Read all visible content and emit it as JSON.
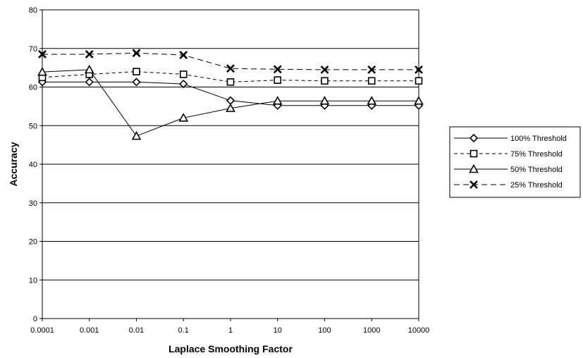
{
  "chart_data": {
    "type": "line",
    "title": "",
    "xlabel": "Laplace Smoothing Factor",
    "ylabel": "Accuracy",
    "categories": [
      "0.0001",
      "0.001",
      "0.01",
      "0.1",
      "1",
      "10",
      "100",
      "1000",
      "10000"
    ],
    "ylim": [
      0,
      80
    ],
    "yticks": [
      0,
      10,
      20,
      30,
      40,
      50,
      60,
      70,
      80
    ],
    "grid": true,
    "legend_position": "right",
    "series": [
      {
        "name": "100% Threshold",
        "marker": "diamond",
        "dash": "solid",
        "values": [
          61.3,
          61.3,
          61.3,
          60.8,
          56.5,
          55.2,
          55.2,
          55.2,
          55.2
        ]
      },
      {
        "name": "75% Threshold",
        "marker": "square",
        "dash": "dashed",
        "values": [
          62.5,
          63.3,
          64.0,
          63.3,
          61.3,
          61.8,
          61.6,
          61.6,
          61.6
        ]
      },
      {
        "name": "50% Threshold",
        "marker": "triangle",
        "dash": "solid",
        "values": [
          63.9,
          64.5,
          47.3,
          52.0,
          54.5,
          56.4,
          56.4,
          56.4,
          56.4
        ]
      },
      {
        "name": "25% Threshold",
        "marker": "x",
        "dash": "long-dashed",
        "values": [
          68.5,
          68.5,
          68.8,
          68.3,
          64.8,
          64.6,
          64.5,
          64.5,
          64.5
        ]
      }
    ]
  }
}
